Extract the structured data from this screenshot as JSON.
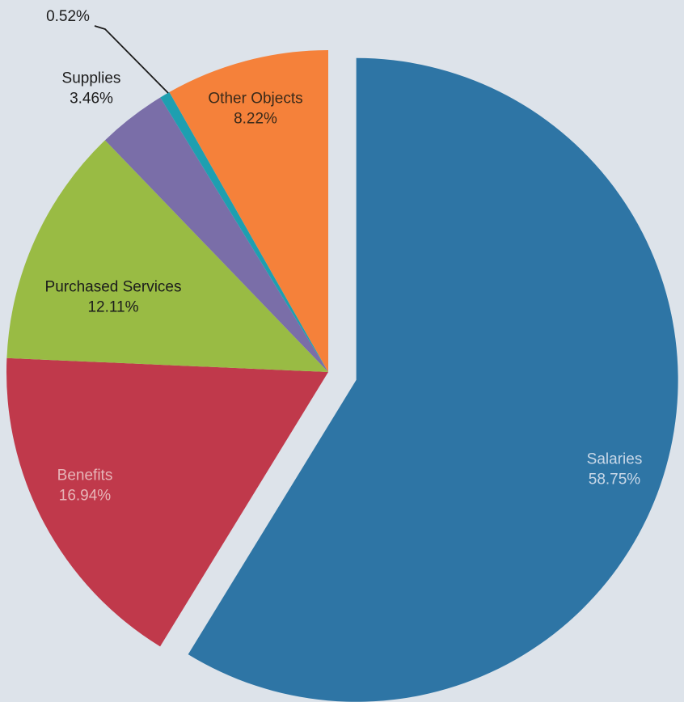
{
  "chart_data": {
    "type": "pie",
    "title": "",
    "slices": [
      {
        "name": "Salaries",
        "value": 58.75,
        "label": "58.75%",
        "color": "#2e75a5",
        "exploded": true,
        "text_color": "#c9d8e8"
      },
      {
        "name": "Benefits",
        "value": 16.94,
        "label": "16.94%",
        "color": "#c0394b",
        "exploded": false,
        "text_color": "#e7b5b8"
      },
      {
        "name": "Purchased Services",
        "value": 12.11,
        "label": "12.11%",
        "color": "#99bb44",
        "exploded": false,
        "text_color": "#1c1c1c"
      },
      {
        "name": "Supplies",
        "value": 3.46,
        "label": "3.46%",
        "color": "#7a6ea8",
        "exploded": false,
        "text_color": "#1c1c1c"
      },
      {
        "name": "",
        "value": 0.52,
        "label": "0.52%",
        "color": "#1e9fb0",
        "exploded": false,
        "text_color": "#1c1c1c"
      },
      {
        "name": "Other Objects",
        "value": 8.22,
        "label": "8.22%",
        "color": "#f5813a",
        "exploded": false,
        "text_color": "#3a2a1a"
      }
    ],
    "legend": "none"
  }
}
